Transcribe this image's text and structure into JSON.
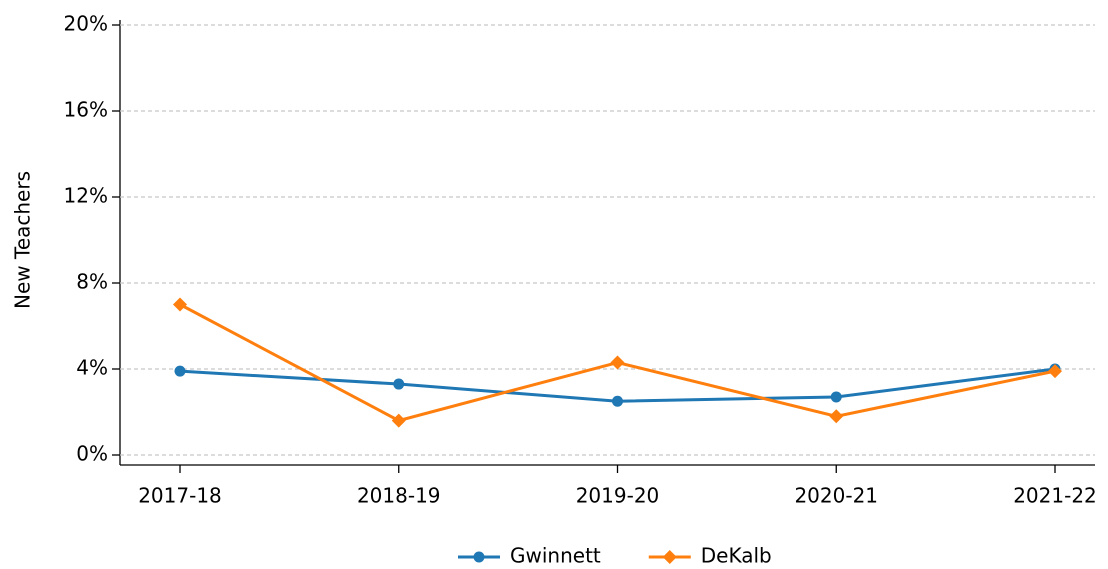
{
  "chart_data": {
    "type": "line",
    "y_label": "New Teachers",
    "categories": [
      "2017-18",
      "2018-19",
      "2019-20",
      "2020-21",
      "2021-22"
    ],
    "series": [
      {
        "name": "Gwinnett",
        "color": "#1f77b4",
        "marker": "circle",
        "values": [
          3.9,
          3.3,
          2.5,
          2.7,
          4.0
        ]
      },
      {
        "name": "DeKalb",
        "color": "#ff7f0e",
        "marker": "diamond",
        "values": [
          7.0,
          1.6,
          4.3,
          1.8,
          3.9
        ]
      }
    ],
    "ylim": [
      0,
      20
    ],
    "yticks": [
      {
        "value": 0,
        "label": "0%"
      },
      {
        "value": 4,
        "label": "4%"
      },
      {
        "value": 8,
        "label": "8%"
      },
      {
        "value": 12,
        "label": "12%"
      },
      {
        "value": 16,
        "label": "16%"
      },
      {
        "value": 20,
        "label": "20%"
      }
    ],
    "grid": true,
    "legend": "bottom"
  }
}
